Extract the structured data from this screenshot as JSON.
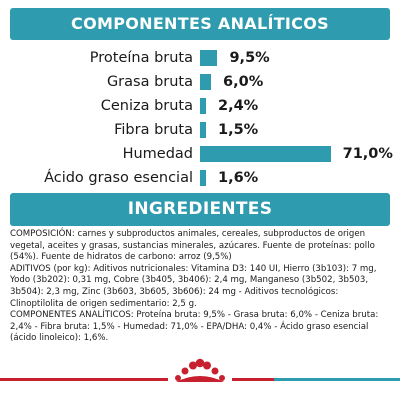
{
  "sections": {
    "analytic_title": "COMPONENTES ANALÍTICOS",
    "ingredients_title": "INGREDIENTES"
  },
  "analytics": [
    {
      "label": "Proteína bruta",
      "value": "9,5%",
      "percent": 9.5
    },
    {
      "label": "Grasa bruta",
      "value": "6,0%",
      "percent": 6.0
    },
    {
      "label": "Ceniza bruta",
      "value": "2,4%",
      "percent": 2.4
    },
    {
      "label": "Fibra bruta",
      "value": "1,5%",
      "percent": 1.5
    },
    {
      "label": "Humedad",
      "value": "71,0%",
      "percent": 71.0
    },
    {
      "label": "Ácido graso esencial",
      "value": "1,6%",
      "percent": 1.6
    }
  ],
  "ingredients": {
    "composition": "COMPOSICIÓN: carnes y subproductos animales, cereales, subproductos de origen vegetal, aceites y grasas, sustancias minerales, azúcares. Fuente de proteínas: pollo (54%). Fuente de hidratos de carbono: arroz (9,5%)",
    "additives": "ADITIVOS (por kg): Aditivos nutricionales: Vitamina D3: 140 UI, Hierro (3b103): 7 mg, Yodo (3b202): 0,31 mg, Cobre (3b405, 3b406): 2,4 mg, Manganeso (3b502, 3b503, 3b504): 2,3 mg, Zinc (3b603, 3b605, 3b606): 24 mg - Aditivos tecnológicos: Clinoptilolita de origen sedimentario: 2,5 g.",
    "analytic": "COMPONENTES ANALÍTICOS: Proteína bruta: 9,5% - Grasa bruta: 6,0% - Ceniza bruta: 2,4% - Fibra bruta: 1,5% - Humedad: 71,0% - EPA/DHA: 0,4% - Ácido graso esencial (ácido linoleico): 1,6%."
  },
  "colors": {
    "accent": "#2f9bae",
    "brand_red": "#c7202f"
  },
  "brand": {
    "logo_icon": "royal-canin-crown-icon"
  }
}
